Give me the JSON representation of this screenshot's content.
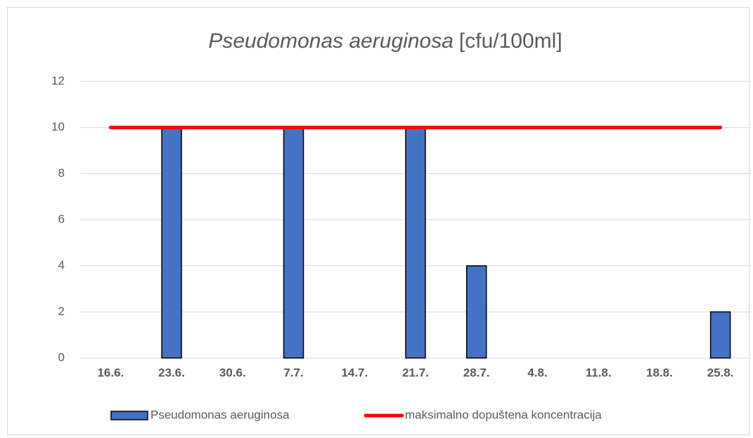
{
  "chart_data": {
    "type": "bar",
    "title": [
      "Pseudomonas aeruginosa",
      "[cfu/100ml]"
    ],
    "categories": [
      "16.6.",
      "23.6.",
      "30.6.",
      "7.7.",
      "14.7.",
      "21.7.",
      "28.7.",
      "4.8.",
      "11.8.",
      "18.8.",
      "25.8."
    ],
    "series": [
      {
        "name": "Pseudomonas aeruginosa",
        "type": "bar",
        "color": "#4472c4",
        "values": [
          0,
          10,
          0,
          10,
          0,
          10,
          4,
          0,
          0,
          0,
          2
        ]
      },
      {
        "name": "maksimalno dopuštena koncentracija",
        "type": "line",
        "color": "#ff0000",
        "values": [
          10,
          10,
          10,
          10,
          10,
          10,
          10,
          10,
          10,
          10,
          10
        ]
      }
    ],
    "ylim": [
      0,
      12
    ],
    "yticks": [
      0,
      2,
      4,
      6,
      8,
      10,
      12
    ],
    "grid": true,
    "legend": "bottom"
  }
}
